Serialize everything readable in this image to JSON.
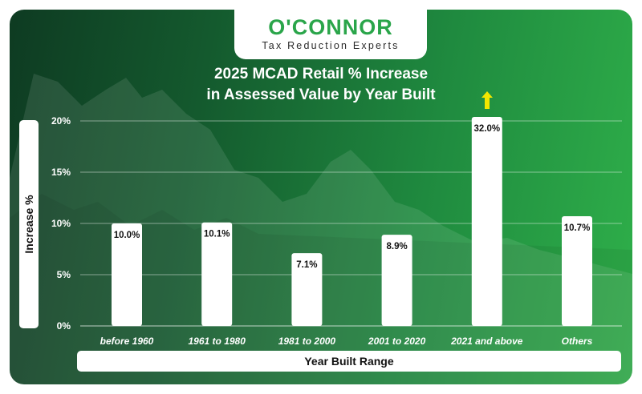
{
  "brand": {
    "name": "O'CONNOR",
    "tagline": "Tax Reduction Experts"
  },
  "chart_data": {
    "type": "bar",
    "title_line1": "2025 MCAD Retail % Increase",
    "title_line2": "in Assessed Value by Year Built",
    "xlabel": "Year Built Range",
    "ylabel": "Increase %",
    "ylim": [
      0,
      20
    ],
    "yticks": [
      "0%",
      "5%",
      "10%",
      "15%",
      "20%"
    ],
    "ytick_values": [
      0,
      5,
      10,
      15,
      20
    ],
    "grid": true,
    "categories": [
      "before 1960",
      "1961 to 1980",
      "1981 to 2000",
      "2001 to 2020",
      "2021 and above",
      "Others"
    ],
    "values": [
      10.0,
      10.1,
      7.1,
      8.9,
      32.0,
      10.7
    ],
    "data_labels": [
      "10.0%",
      "10.1%",
      "7.1%",
      "8.9%",
      "32.0%",
      "10.7%"
    ],
    "clipped_note": "2021 and above bar exceeds axis (arrow)",
    "bar_color": "#ffffff",
    "arrow_color": "#f2e600"
  }
}
